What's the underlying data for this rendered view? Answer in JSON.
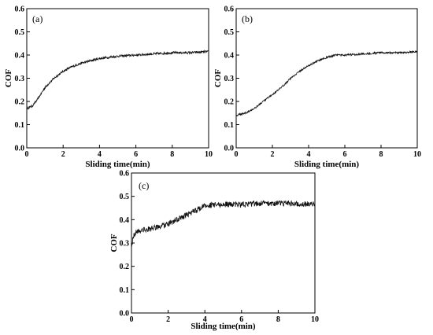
{
  "chart_data": [
    {
      "type": "line",
      "panel_label": "(a)",
      "xlabel": "Sliding time(min)",
      "ylabel": "COF",
      "xlim": [
        0,
        10
      ],
      "ylim": [
        0,
        0.6
      ],
      "x_ticks": [
        0,
        2,
        4,
        6,
        8,
        10
      ],
      "y_ticks": [
        0.0,
        0.1,
        0.2,
        0.3,
        0.4,
        0.5,
        0.6
      ],
      "x_tick_labels": [
        "0",
        "2",
        "4",
        "6",
        "8",
        "10"
      ],
      "y_tick_labels": [
        "0.0",
        "0.1",
        "0.2",
        "0.3",
        "0.4",
        "0.5",
        "0.6"
      ],
      "grid": false,
      "noise": 0.005,
      "series": [
        {
          "x": [
            0,
            0.3,
            0.6,
            1.0,
            1.5,
            2.0,
            2.5,
            3.0,
            3.5,
            4.0,
            4.5,
            5.0,
            6.0,
            7.0,
            8.0,
            9.0,
            10.0
          ],
          "y": [
            0.17,
            0.18,
            0.21,
            0.26,
            0.3,
            0.33,
            0.35,
            0.365,
            0.375,
            0.385,
            0.39,
            0.395,
            0.4,
            0.405,
            0.41,
            0.41,
            0.415
          ]
        }
      ]
    },
    {
      "type": "line",
      "panel_label": "(b)",
      "xlabel": "Sliding time(min)",
      "ylabel": "COF",
      "xlim": [
        0,
        10
      ],
      "ylim": [
        0,
        0.6
      ],
      "x_ticks": [
        0,
        2,
        4,
        6,
        8,
        10
      ],
      "y_ticks": [
        0.0,
        0.1,
        0.2,
        0.3,
        0.4,
        0.5,
        0.6
      ],
      "x_tick_labels": [
        "0",
        "2",
        "4",
        "6",
        "8",
        "10"
      ],
      "y_tick_labels": [
        "0.0",
        "0.1",
        "0.2",
        "0.3",
        "0.4",
        "0.5",
        "0.6"
      ],
      "grid": false,
      "noise": 0.004,
      "series": [
        {
          "x": [
            0,
            0.5,
            1.0,
            1.5,
            2.0,
            2.5,
            3.0,
            3.5,
            4.0,
            4.5,
            5.0,
            5.5,
            6.0,
            7.0,
            8.0,
            9.0,
            10.0
          ],
          "y": [
            0.14,
            0.15,
            0.17,
            0.2,
            0.23,
            0.26,
            0.3,
            0.33,
            0.355,
            0.375,
            0.39,
            0.4,
            0.4,
            0.405,
            0.41,
            0.41,
            0.415
          ]
        }
      ]
    },
    {
      "type": "line",
      "panel_label": "(c)",
      "xlabel": "Sliding time(min)",
      "ylabel": "COF",
      "xlim": [
        0,
        10
      ],
      "ylim": [
        0,
        0.6
      ],
      "x_ticks": [
        0,
        2,
        4,
        6,
        8,
        10
      ],
      "y_ticks": [
        0.0,
        0.1,
        0.2,
        0.3,
        0.4,
        0.5,
        0.6
      ],
      "x_tick_labels": [
        "0",
        "2",
        "4",
        "6",
        "8",
        "10"
      ],
      "y_tick_labels": [
        "0.0",
        "0.1",
        "0.2",
        "0.3",
        "0.4",
        "0.5",
        "0.6"
      ],
      "grid": false,
      "noise": 0.012,
      "series": [
        {
          "x": [
            0,
            0.1,
            0.3,
            0.6,
            1.0,
            1.5,
            2.0,
            2.5,
            3.0,
            3.5,
            4.0,
            5.0,
            6.0,
            7.0,
            8.0,
            9.0,
            10.0
          ],
          "y": [
            0.28,
            0.33,
            0.35,
            0.355,
            0.36,
            0.37,
            0.38,
            0.4,
            0.42,
            0.44,
            0.46,
            0.465,
            0.465,
            0.47,
            0.47,
            0.47,
            0.465
          ]
        }
      ]
    }
  ]
}
